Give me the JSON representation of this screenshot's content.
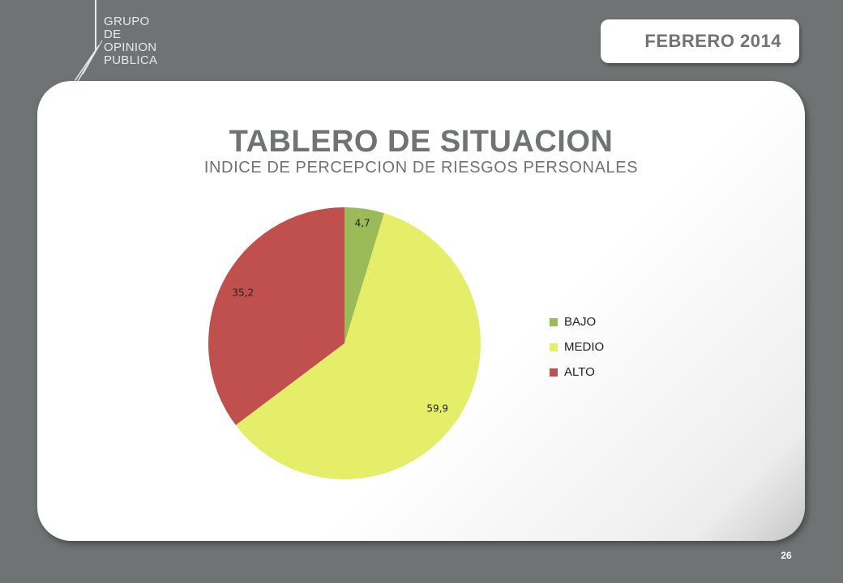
{
  "brand": {
    "lines": [
      "GRUPO",
      "DE",
      "OPINION",
      "PUBLICA"
    ]
  },
  "header": {
    "date": "FEBRERO 2014"
  },
  "footer": {
    "page_number": "26"
  },
  "colors": {
    "background": "#6f7374",
    "bajo": "#9bbb59",
    "medio": "#e4ee68",
    "alto": "#c0504d"
  },
  "chart_data": {
    "type": "pie",
    "title": "TABLERO DE SITUACION",
    "subtitle": "INDICE DE PERCEPCION DE RIESGOS PERSONALES",
    "legend_position": "right",
    "slices": [
      {
        "label": "BAJO",
        "value": 4.7,
        "display": "4,7",
        "color": "#9bbb59"
      },
      {
        "label": "MEDIO",
        "value": 59.9,
        "display": "59,9",
        "color": "#e4ee68"
      },
      {
        "label": "ALTO",
        "value": 35.2,
        "display": "35,2",
        "color": "#c0504d"
      }
    ]
  }
}
